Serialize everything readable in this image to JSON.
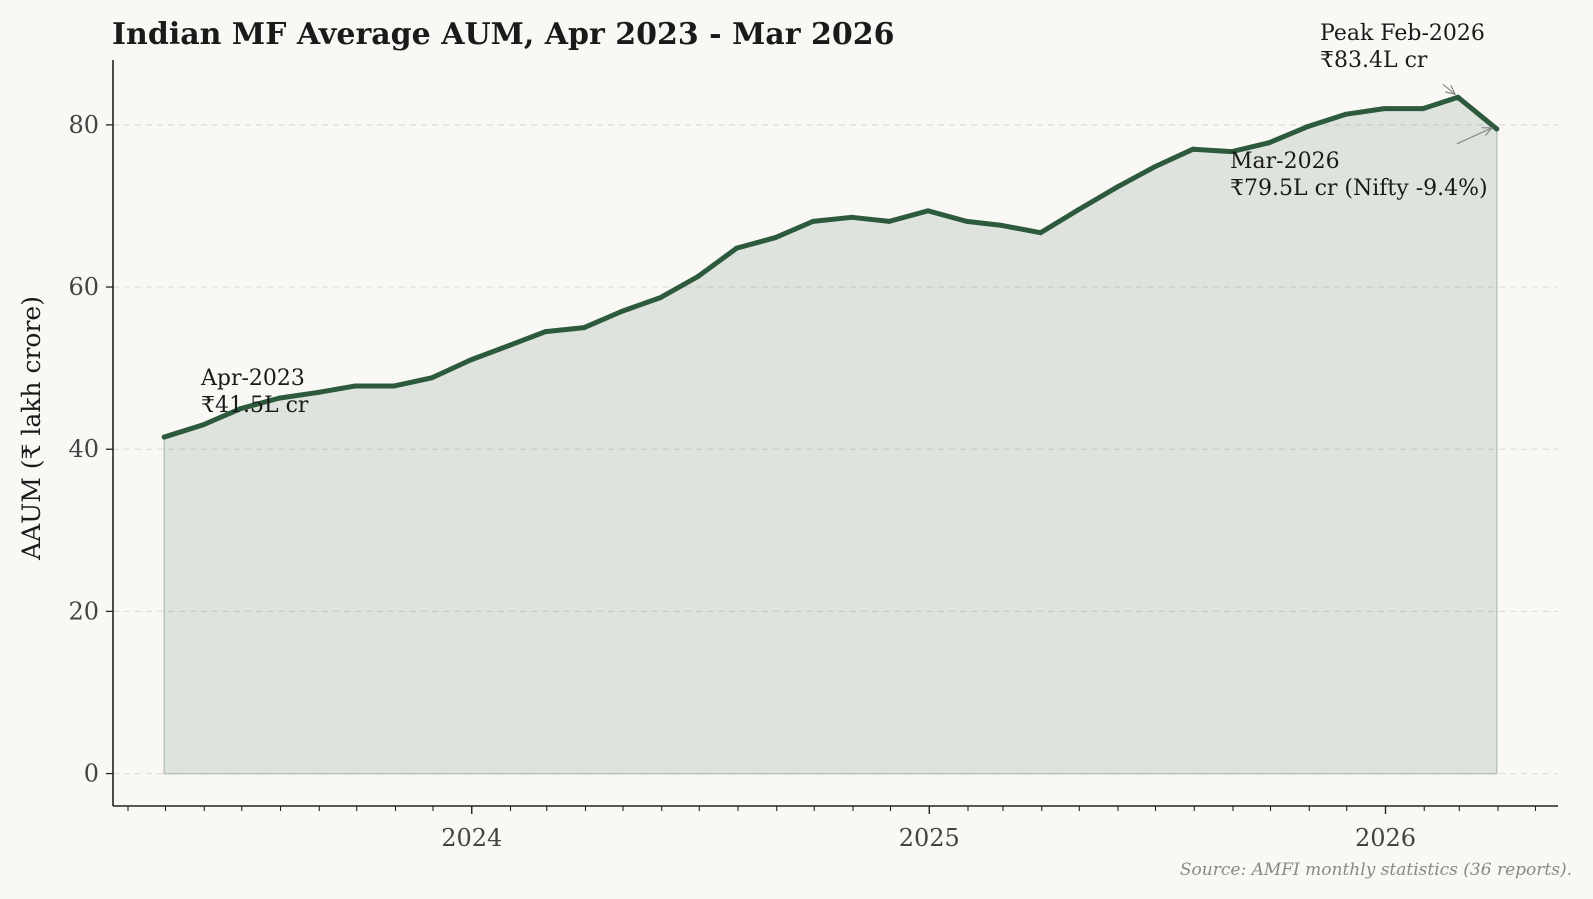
{
  "chart_data": {
    "type": "area",
    "title": "Indian MF Average AUM, Apr 2023 - Mar 2026",
    "ylabel": "AAUM (₹ lakh crore)",
    "xlabel": "",
    "ylim": [
      -4,
      88
    ],
    "yticks": [
      0,
      20,
      40,
      60,
      80
    ],
    "xticks": [
      {
        "label": "2024",
        "date": "2024-01-01"
      },
      {
        "label": "2025",
        "date": "2025-01-01"
      },
      {
        "label": "2026",
        "date": "2026-01-01"
      }
    ],
    "xlim": [
      "2023-03-20",
      "2026-05-19"
    ],
    "grid": "horizontal-dashed",
    "line_color": "#2d5a3d",
    "fill_color": "#2d5a3d",
    "x": [
      "2023-04-30",
      "2023-05-31",
      "2023-06-30",
      "2023-07-31",
      "2023-08-31",
      "2023-09-30",
      "2023-10-31",
      "2023-11-30",
      "2023-12-31",
      "2024-01-31",
      "2024-02-29",
      "2024-03-31",
      "2024-04-30",
      "2024-05-31",
      "2024-06-30",
      "2024-07-31",
      "2024-08-31",
      "2024-09-30",
      "2024-10-31",
      "2024-11-30",
      "2024-12-31",
      "2025-01-31",
      "2025-02-28",
      "2025-03-31",
      "2025-04-30",
      "2025-05-31",
      "2025-06-30",
      "2025-07-31",
      "2025-08-31",
      "2025-09-30",
      "2025-10-31",
      "2025-11-30",
      "2025-12-31",
      "2026-01-31",
      "2026-02-28",
      "2026-03-31"
    ],
    "values": [
      41.5,
      43.0,
      45.0,
      46.3,
      47.0,
      47.8,
      47.8,
      48.8,
      51.0,
      52.8,
      54.5,
      55.0,
      57.0,
      58.7,
      61.3,
      64.8,
      66.1,
      68.1,
      68.6,
      68.1,
      69.4,
      68.1,
      67.6,
      66.7,
      69.5,
      72.3,
      74.8,
      77.0,
      76.7,
      77.8,
      79.8,
      81.3,
      82.0,
      82.0,
      83.4,
      79.5
    ],
    "annotations": [
      {
        "line1": "Apr-2023",
        "line2": "₹41.5L cr"
      },
      {
        "line1": "Peak Feb-2026",
        "line2": "₹83.4L cr"
      },
      {
        "line1": "Mar-2026",
        "line2": "₹79.5L cr (Nifty -9.4%)"
      }
    ],
    "source": "Source: AMFI monthly statistics (36 reports)."
  }
}
